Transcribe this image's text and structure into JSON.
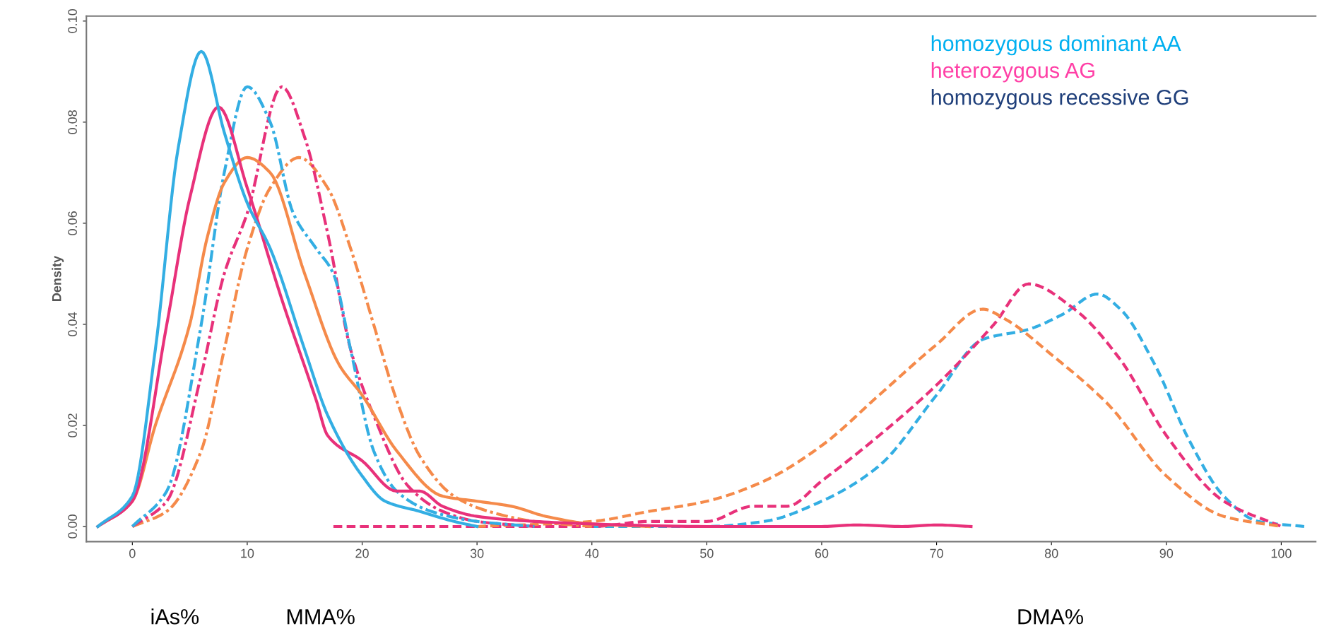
{
  "chart_data": {
    "type": "line",
    "ylabel": "Density",
    "xlim": [
      -4,
      103
    ],
    "ylim": [
      -0.003,
      0.101
    ],
    "xticks": [
      0,
      10,
      20,
      30,
      40,
      50,
      60,
      70,
      80,
      90,
      100
    ],
    "yticks": [
      {
        "value": 0,
        "label": "0.00"
      },
      {
        "value": 0.02,
        "label": "0.02"
      },
      {
        "value": 0.04,
        "label": "0.04"
      },
      {
        "value": 0.06,
        "label": "0.06"
      },
      {
        "value": 0.08,
        "label": "0.08"
      },
      {
        "value": 0.1,
        "label": "0.10"
      }
    ],
    "grid": false,
    "marker": "none",
    "series": [
      {
        "color": "#33aee3",
        "line_style": "solid",
        "x": [
          -3,
          0,
          2,
          4,
          6,
          8,
          10,
          12,
          15,
          17,
          20,
          22,
          25,
          28,
          30
        ],
        "values": [
          0,
          0.006,
          0.035,
          0.075,
          0.094,
          0.078,
          0.064,
          0.055,
          0.035,
          0.022,
          0.01,
          0.005,
          0.003,
          0.001,
          0
        ]
      },
      {
        "color": "#e8317a",
        "line_style": "solid",
        "x": [
          -3,
          0,
          3,
          5,
          7.5,
          10,
          13,
          16,
          17,
          20,
          23,
          25,
          27,
          30,
          35,
          40,
          50,
          60,
          63,
          67,
          70,
          73
        ],
        "values": [
          0,
          0.005,
          0.04,
          0.065,
          0.083,
          0.067,
          0.045,
          0.025,
          0.018,
          0.013,
          0.007,
          0.007,
          0.004,
          0.002,
          0.001,
          0.0005,
          0,
          0,
          0.0003,
          0,
          0.0003,
          0
        ]
      },
      {
        "color": "#f58a4a",
        "line_style": "solid",
        "x": [
          -3,
          0,
          2,
          5,
          6.5,
          8,
          10,
          12,
          15,
          18,
          20,
          23,
          27,
          30,
          33,
          36,
          40,
          45
        ],
        "values": [
          0,
          0.005,
          0.02,
          0.04,
          0.057,
          0.068,
          0.073,
          0.07,
          0.05,
          0.032,
          0.026,
          0.015,
          0.006,
          0.005,
          0.004,
          0.002,
          0.0005,
          0
        ]
      },
      {
        "color": "#33aee3",
        "line_style": "dashdot",
        "x": [
          0,
          3,
          6,
          8,
          10,
          12,
          14,
          16,
          17.5,
          19,
          21,
          23,
          26,
          30,
          35
        ],
        "values": [
          0,
          0.007,
          0.04,
          0.07,
          0.087,
          0.08,
          0.062,
          0.055,
          0.05,
          0.035,
          0.015,
          0.007,
          0.003,
          0.001,
          0
        ]
      },
      {
        "color": "#e8317a",
        "line_style": "dashdot",
        "x": [
          0,
          3,
          6,
          8,
          10,
          13,
          15,
          17,
          19,
          21,
          24,
          27,
          30,
          35
        ],
        "values": [
          0,
          0.005,
          0.03,
          0.05,
          0.062,
          0.087,
          0.077,
          0.058,
          0.035,
          0.022,
          0.008,
          0.003,
          0.001,
          0
        ]
      },
      {
        "color": "#f58a4a",
        "line_style": "dashdot",
        "x": [
          0,
          3,
          6,
          8,
          10,
          12,
          14.5,
          17,
          19,
          21,
          23,
          25,
          28,
          31,
          35,
          40
        ],
        "values": [
          0,
          0.003,
          0.015,
          0.035,
          0.055,
          0.067,
          0.073,
          0.067,
          0.055,
          0.04,
          0.025,
          0.014,
          0.006,
          0.003,
          0.001,
          0
        ]
      },
      {
        "color": "#f58a4a",
        "line_style": "dashed",
        "x": [
          30,
          40,
          45,
          50,
          55,
          60,
          65,
          70,
          74,
          76,
          80,
          85,
          90,
          95,
          100
        ],
        "values": [
          0,
          0.001,
          0.003,
          0.005,
          0.009,
          0.016,
          0.026,
          0.036,
          0.043,
          0.041,
          0.034,
          0.024,
          0.01,
          0.002,
          0
        ]
      },
      {
        "color": "#e8317a",
        "line_style": "dashed",
        "x": [
          17.5,
          40,
          45,
          50,
          54,
          57,
          60,
          65,
          70,
          75,
          78,
          82,
          86,
          90,
          95,
          100
        ],
        "values": [
          0,
          0,
          0.001,
          0.001,
          0.004,
          0.004,
          0.009,
          0.018,
          0.028,
          0.04,
          0.048,
          0.043,
          0.033,
          0.018,
          0.005,
          0
        ]
      },
      {
        "color": "#33aee3",
        "line_style": "dashed",
        "x": [
          40,
          50,
          55,
          60,
          65,
          70,
          74,
          78,
          81,
          84,
          86,
          89,
          92,
          95,
          98,
          102
        ],
        "values": [
          0,
          0,
          0.001,
          0.005,
          0.012,
          0.026,
          0.037,
          0.039,
          0.042,
          0.046,
          0.043,
          0.032,
          0.017,
          0.006,
          0.001,
          0
        ]
      }
    ],
    "annotations": [
      "homozygous dominant AA",
      "heterozygous AG",
      "homozygous recessive GG",
      "iAs%",
      "MMA%",
      "DMA%"
    ]
  }
}
